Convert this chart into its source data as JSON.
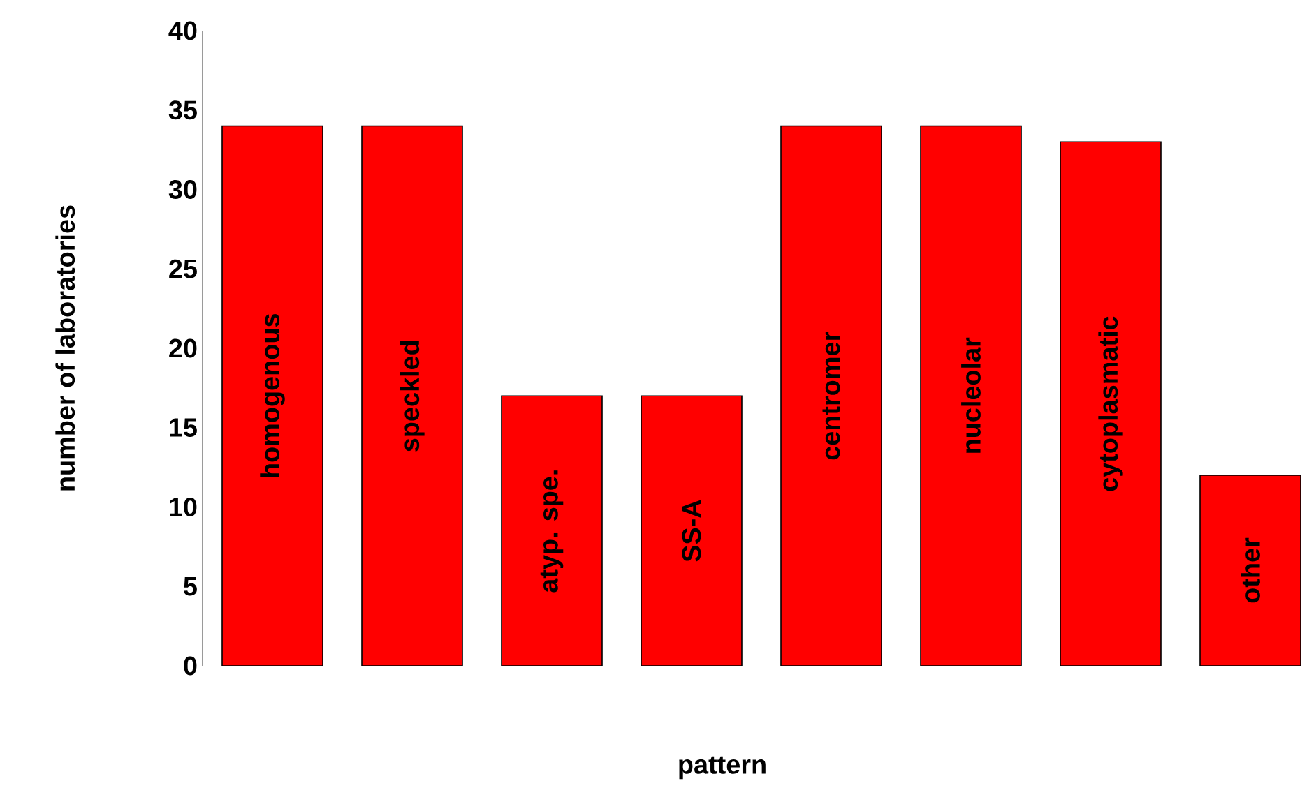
{
  "chart_data": {
    "type": "bar",
    "xlabel": "pattern",
    "ylabel": "number of laboratories",
    "categories": [
      "homogenous",
      "speckled",
      "atyp. spe.",
      "SS-A",
      "centromer",
      "nucleolar",
      "cytoplasmatic",
      "other"
    ],
    "values": [
      34,
      34,
      17,
      17,
      34,
      34,
      33,
      12
    ],
    "color": "#ff0000",
    "ylim": [
      0,
      40
    ],
    "yticks": [
      0,
      5,
      10,
      15,
      20,
      25,
      30,
      35,
      40
    ],
    "grid": false
  }
}
